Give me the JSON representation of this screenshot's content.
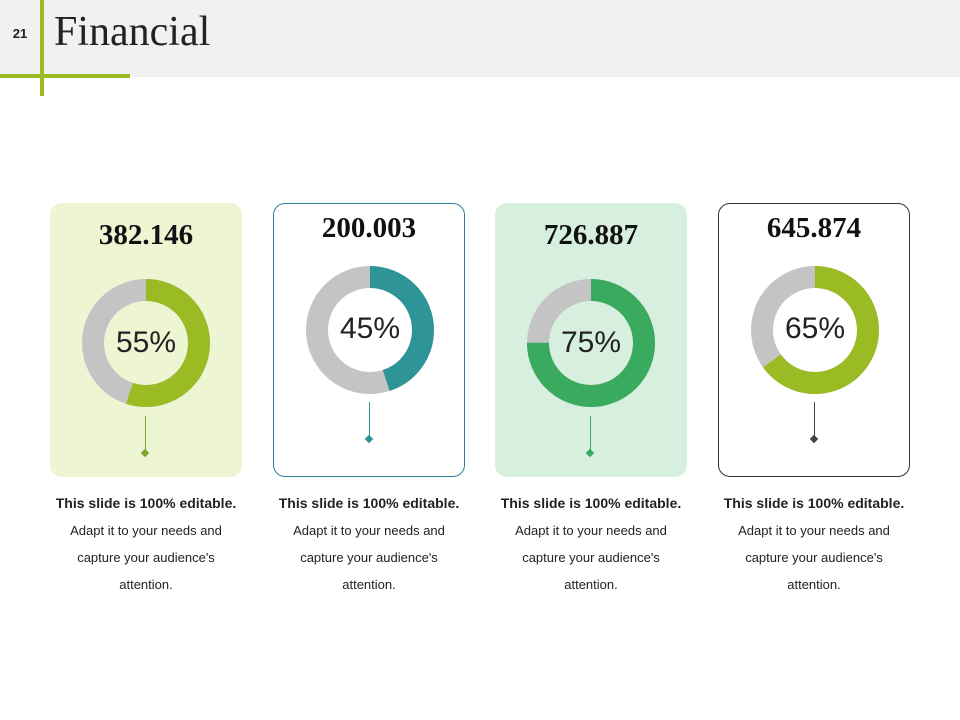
{
  "slide": {
    "number": "21",
    "title": "Financial",
    "accent_color": "#9bbb24",
    "ring_bg_color": "#c4c4c4"
  },
  "cards": [
    {
      "value": "382.146",
      "percent_label": "55%",
      "percent": 55,
      "ring_color": "#9bbb24",
      "card_bg": "#eef5d3",
      "border": "none",
      "stem_color": "#7fa32a",
      "desc_bold": "This slide is 100% editable.",
      "desc_text": "Adapt it to your needs and capture your audience's attention."
    },
    {
      "value": "200.003",
      "percent_label": "45%",
      "percent": 45,
      "ring_color": "#2e9497",
      "card_bg": "#ffffff",
      "border": "#2e7fa0",
      "stem_color": "#2e9497",
      "desc_bold": "This slide is 100% editable.",
      "desc_text": "Adapt it to your needs and capture your audience's attention."
    },
    {
      "value": "726.887",
      "percent_label": "75%",
      "percent": 75,
      "ring_color": "#3aaa5e",
      "card_bg": "#d7efdf",
      "border": "none",
      "stem_color": "#3aaa5e",
      "desc_bold": "This slide is 100% editable.",
      "desc_text": "Adapt it to your needs and capture your audience's attention."
    },
    {
      "value": "645.874",
      "percent_label": "65%",
      "percent": 65,
      "ring_color": "#9bbb24",
      "card_bg": "#ffffff",
      "border": "#333333",
      "stem_color": "#444444",
      "desc_bold": "This slide is 100% editable.",
      "desc_text": "Adapt it to your needs and capture your audience's attention."
    }
  ]
}
